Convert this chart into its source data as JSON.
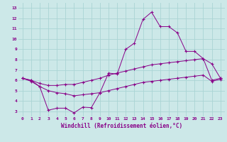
{
  "xlabel": "Windchill (Refroidissement éolien,°C)",
  "bg_color": "#cce8e8",
  "line_color": "#880088",
  "grid_color": "#aad4d4",
  "xlim": [
    -0.5,
    23.5
  ],
  "ylim": [
    2.5,
    13.5
  ],
  "xticks": [
    0,
    1,
    2,
    3,
    4,
    5,
    6,
    7,
    8,
    9,
    10,
    11,
    12,
    13,
    14,
    15,
    16,
    17,
    18,
    19,
    20,
    21,
    22,
    23
  ],
  "yticks": [
    3,
    4,
    5,
    6,
    7,
    8,
    9,
    10,
    11,
    12,
    13
  ],
  "line1_x": [
    0,
    1,
    2,
    3,
    4,
    5,
    6,
    7,
    8,
    9,
    10,
    11,
    12,
    13,
    14,
    15,
    16,
    17,
    18,
    19,
    20,
    21,
    22,
    23
  ],
  "line1_y": [
    6.2,
    6.0,
    5.4,
    3.1,
    3.3,
    3.3,
    2.85,
    3.4,
    3.35,
    4.8,
    6.7,
    6.6,
    9.0,
    9.6,
    11.9,
    12.6,
    11.2,
    11.2,
    10.6,
    8.8,
    8.8,
    8.1,
    7.6,
    6.2
  ],
  "line2_x": [
    0,
    1,
    2,
    3,
    4,
    5,
    6,
    7,
    8,
    9,
    10,
    11,
    12,
    13,
    14,
    15,
    16,
    17,
    18,
    19,
    20,
    21,
    22,
    23
  ],
  "line2_y": [
    6.2,
    6.0,
    5.7,
    5.5,
    5.5,
    5.6,
    5.6,
    5.8,
    6.0,
    6.2,
    6.5,
    6.7,
    6.9,
    7.1,
    7.3,
    7.5,
    7.6,
    7.7,
    7.8,
    7.9,
    8.0,
    8.1,
    6.0,
    6.2
  ],
  "line3_x": [
    0,
    1,
    2,
    3,
    4,
    5,
    6,
    7,
    8,
    9,
    10,
    11,
    12,
    13,
    14,
    15,
    16,
    17,
    18,
    19,
    20,
    21,
    22,
    23
  ],
  "line3_y": [
    6.2,
    5.9,
    5.4,
    5.0,
    4.8,
    4.7,
    4.5,
    4.6,
    4.7,
    4.8,
    5.0,
    5.2,
    5.4,
    5.6,
    5.8,
    5.9,
    6.0,
    6.1,
    6.2,
    6.3,
    6.4,
    6.5,
    5.9,
    6.1
  ],
  "tick_fontsize": 4.5,
  "label_fontsize": 5.5
}
